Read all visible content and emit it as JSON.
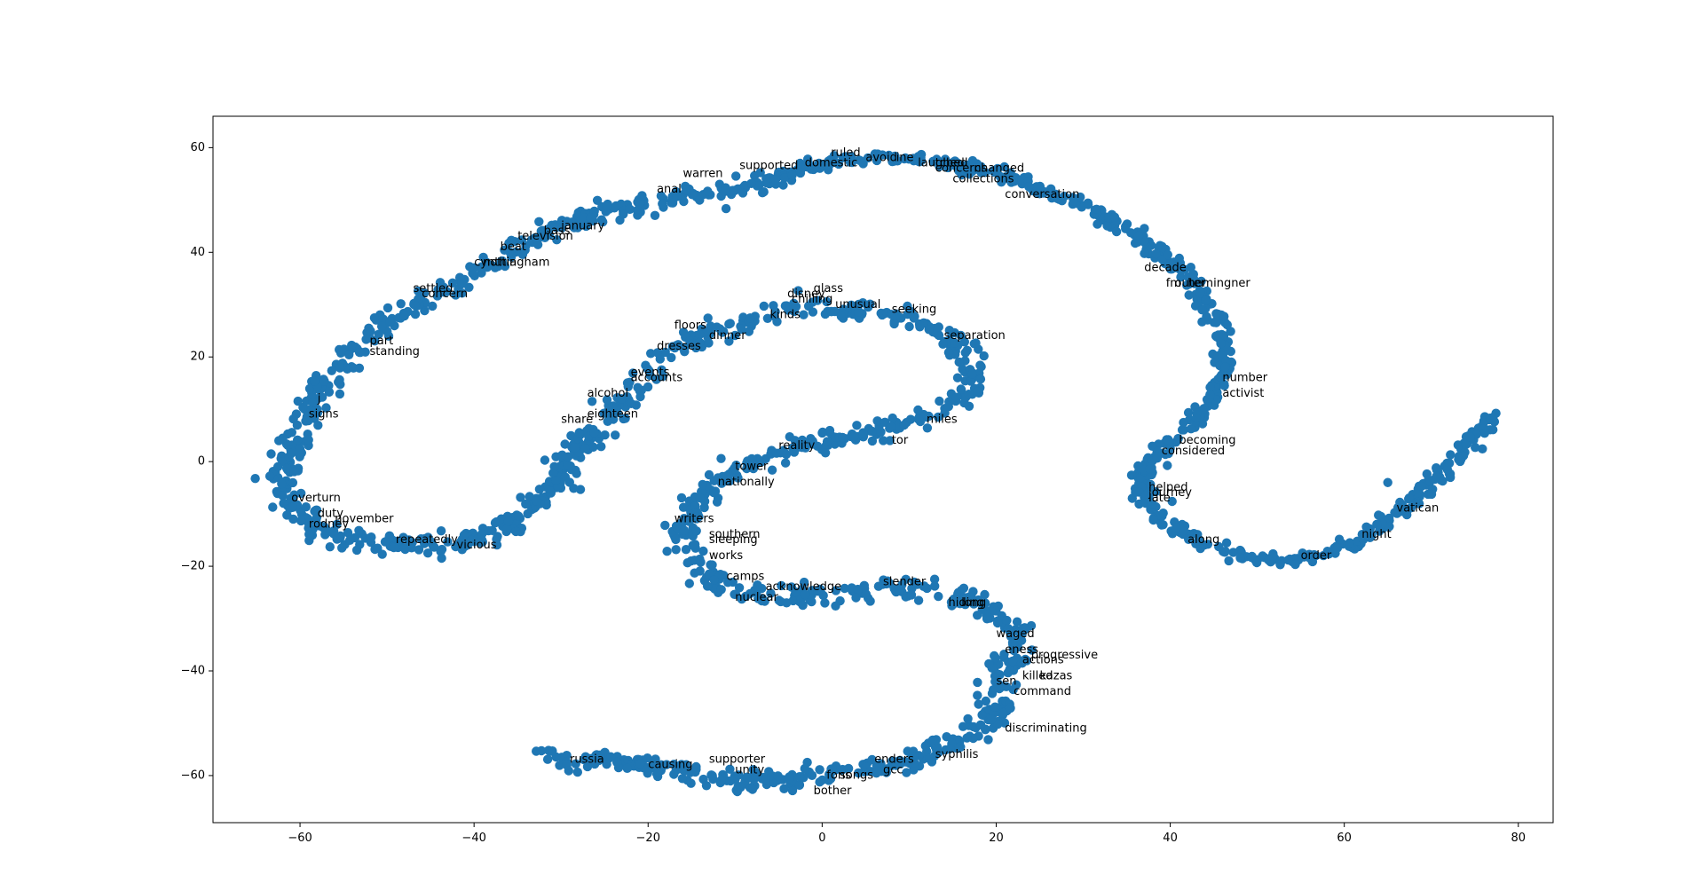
{
  "chart_data": {
    "type": "scatter",
    "title": "",
    "xlabel": "",
    "ylabel": "",
    "xlim": [
      -70,
      84
    ],
    "ylim": [
      -69,
      66
    ],
    "xticks": [
      -60,
      -40,
      -20,
      0,
      20,
      40,
      60,
      80
    ],
    "yticks": [
      -60,
      -40,
      -20,
      0,
      20,
      40,
      60
    ],
    "xtick_labels": [
      "−60",
      "−40",
      "−20",
      "0",
      "20",
      "40",
      "60",
      "80"
    ],
    "ytick_labels": [
      "−60",
      "−40",
      "−20",
      "0",
      "20",
      "40",
      "60"
    ],
    "grid": false,
    "legend": "none",
    "marker_color": "#1f77b4",
    "series_paths": [
      {
        "id": "outer",
        "points": [
          [
            -5,
            54
          ],
          [
            -10,
            52
          ],
          [
            -15,
            51
          ],
          [
            -20,
            49
          ],
          [
            -25,
            48
          ],
          [
            -30,
            45
          ],
          [
            -34,
            42
          ],
          [
            -38,
            38
          ],
          [
            -42,
            34
          ],
          [
            -46,
            31
          ],
          [
            -50,
            27
          ],
          [
            -53,
            23
          ],
          [
            -55,
            19
          ],
          [
            -57,
            15
          ],
          [
            -59,
            10
          ],
          [
            -60,
            6
          ],
          [
            -61,
            2
          ],
          [
            -62,
            -2
          ],
          [
            -62,
            -5
          ],
          [
            -60,
            -10
          ],
          [
            -58,
            -13
          ],
          [
            -56,
            -15
          ],
          [
            -52,
            -16
          ],
          [
            -48,
            -16
          ],
          [
            -44,
            -16
          ],
          [
            -40,
            -15
          ],
          [
            -37,
            -13
          ],
          [
            -35,
            -10
          ],
          [
            -33,
            -8
          ],
          [
            -31,
            -5
          ],
          [
            -29,
            -1
          ],
          [
            -28,
            2
          ],
          [
            -27,
            5
          ],
          [
            -25,
            8
          ],
          [
            -23,
            11
          ],
          [
            -21,
            14
          ],
          [
            -19,
            18
          ],
          [
            -17,
            21
          ],
          [
            -15,
            23
          ],
          [
            -12,
            25
          ],
          [
            -8,
            27
          ],
          [
            -4,
            29
          ],
          [
            0,
            29
          ],
          [
            4,
            29
          ],
          [
            8,
            28
          ],
          [
            12,
            26
          ],
          [
            15,
            24
          ],
          [
            16,
            21
          ],
          [
            17,
            18
          ],
          [
            17,
            15
          ],
          [
            16,
            12
          ],
          [
            14,
            10
          ],
          [
            11,
            8
          ],
          [
            8,
            6
          ],
          [
            5,
            5
          ],
          [
            1,
            4
          ],
          [
            -3,
            3
          ],
          [
            -6,
            1
          ],
          [
            -9,
            -1
          ],
          [
            -12,
            -4
          ],
          [
            -14,
            -7
          ],
          [
            -16,
            -11
          ],
          [
            -16,
            -15
          ],
          [
            -15,
            -19
          ],
          [
            -13,
            -22
          ],
          [
            -10,
            -24
          ],
          [
            -6,
            -26
          ],
          [
            -2,
            -26
          ],
          [
            2,
            -25
          ],
          [
            6,
            -24
          ],
          [
            10,
            -24
          ],
          [
            14,
            -25
          ],
          [
            18,
            -27
          ],
          [
            21,
            -30
          ],
          [
            23,
            -34
          ],
          [
            22,
            -37
          ],
          [
            20,
            -40
          ],
          [
            20,
            -44
          ],
          [
            20,
            -48
          ],
          [
            18,
            -51
          ],
          [
            15,
            -54
          ],
          [
            12,
            -56
          ],
          [
            8,
            -58
          ],
          [
            4,
            -59
          ],
          [
            0,
            -60
          ],
          [
            -4,
            -61
          ],
          [
            -8,
            -61
          ],
          [
            -12,
            -60
          ],
          [
            -16,
            -59
          ],
          [
            -20,
            -58
          ],
          [
            -24,
            -57
          ],
          [
            -28,
            -57
          ],
          [
            -32,
            -56
          ]
        ],
        "spread": 1.6,
        "count": 1500
      },
      {
        "id": "spiral",
        "points": [
          [
            -5,
            54
          ],
          [
            0,
            57
          ],
          [
            5,
            58
          ],
          [
            10,
            58
          ],
          [
            15,
            57
          ],
          [
            20,
            55
          ],
          [
            25,
            52
          ],
          [
            30,
            49
          ],
          [
            34,
            45
          ],
          [
            38,
            41
          ],
          [
            42,
            36
          ],
          [
            44,
            30
          ],
          [
            46,
            24
          ],
          [
            46,
            18
          ],
          [
            45,
            12
          ],
          [
            42,
            7
          ],
          [
            39,
            2
          ],
          [
            37,
            -2
          ],
          [
            37,
            -6
          ],
          [
            39,
            -11
          ],
          [
            43,
            -15
          ],
          [
            48,
            -18
          ],
          [
            53,
            -19
          ],
          [
            58,
            -18
          ],
          [
            62,
            -15
          ],
          [
            66,
            -10
          ],
          [
            70,
            -4
          ],
          [
            73,
            1
          ],
          [
            75,
            5
          ],
          [
            77,
            9
          ]
        ],
        "spread": 1.0,
        "count": 650
      }
    ],
    "outliers": [
      [
        65,
        -4
      ]
    ],
    "annotations": [
      {
        "text": "supported",
        "x": -9.5,
        "y": 56.5
      },
      {
        "text": "warren",
        "x": -16,
        "y": 55
      },
      {
        "text": "anal",
        "x": -19,
        "y": 52
      },
      {
        "text": "ruled",
        "x": 1,
        "y": 59
      },
      {
        "text": "domestic",
        "x": -2,
        "y": 57
      },
      {
        "text": "avoid",
        "x": 5,
        "y": 58
      },
      {
        "text": "ine",
        "x": 8.5,
        "y": 58
      },
      {
        "text": "laughed",
        "x": 11,
        "y": 57
      },
      {
        "text": "tched",
        "x": 13,
        "y": 57
      },
      {
        "text": "concerns",
        "x": 13,
        "y": 56
      },
      {
        "text": "changed",
        "x": 17.5,
        "y": 56
      },
      {
        "text": "collections",
        "x": 15,
        "y": 54
      },
      {
        "text": "conversation",
        "x": 21,
        "y": 51
      },
      {
        "text": "decade",
        "x": 37,
        "y": 37
      },
      {
        "text": "fm",
        "x": 39.5,
        "y": 34
      },
      {
        "text": "outer",
        "x": 40.5,
        "y": 34
      },
      {
        "text": "hemingner",
        "x": 42,
        "y": 34
      },
      {
        "text": "number",
        "x": 46,
        "y": 16
      },
      {
        "text": "activist",
        "x": 46,
        "y": 13
      },
      {
        "text": "becoming",
        "x": 41,
        "y": 4
      },
      {
        "text": "considered",
        "x": 39,
        "y": 2
      },
      {
        "text": "helped",
        "x": 37.5,
        "y": -5
      },
      {
        "text": "journey",
        "x": 37.5,
        "y": -6
      },
      {
        "text": "late",
        "x": 37.5,
        "y": -7
      },
      {
        "text": "vatican",
        "x": 66,
        "y": -9
      },
      {
        "text": "night",
        "x": 62,
        "y": -14
      },
      {
        "text": "order",
        "x": 55,
        "y": -18
      },
      {
        "text": "along",
        "x": 42,
        "y": -15
      },
      {
        "text": "glass",
        "x": -1,
        "y": 33
      },
      {
        "text": "disney",
        "x": -4,
        "y": 32
      },
      {
        "text": "chilling",
        "x": -3.5,
        "y": 31
      },
      {
        "text": "unusual",
        "x": 1.5,
        "y": 30
      },
      {
        "text": "seeking",
        "x": 8,
        "y": 29
      },
      {
        "text": "kinds",
        "x": -6,
        "y": 28
      },
      {
        "text": "floors",
        "x": -17,
        "y": 26
      },
      {
        "text": "dinner",
        "x": -13,
        "y": 24
      },
      {
        "text": "separation",
        "x": 14,
        "y": 24
      },
      {
        "text": "dresses",
        "x": -19,
        "y": 22
      },
      {
        "text": "events",
        "x": -22,
        "y": 17
      },
      {
        "text": "accounts",
        "x": -22,
        "y": 16
      },
      {
        "text": "alcohol",
        "x": -27,
        "y": 13
      },
      {
        "text": "eighteen",
        "x": -27,
        "y": 9
      },
      {
        "text": "share",
        "x": -30,
        "y": 8
      },
      {
        "text": "miles",
        "x": 12,
        "y": 8
      },
      {
        "text": "reality",
        "x": -5,
        "y": 3
      },
      {
        "text": "tor",
        "x": 8,
        "y": 4
      },
      {
        "text": "tower",
        "x": -10,
        "y": -1
      },
      {
        "text": "nationally",
        "x": -12,
        "y": -4
      },
      {
        "text": "writers",
        "x": -17,
        "y": -11
      },
      {
        "text": "southern",
        "x": -13,
        "y": -14
      },
      {
        "text": "sleeping",
        "x": -13,
        "y": -15
      },
      {
        "text": "works",
        "x": -13,
        "y": -18
      },
      {
        "text": "camps",
        "x": -11,
        "y": -22
      },
      {
        "text": "acknowledge",
        "x": -6.5,
        "y": -24
      },
      {
        "text": "nuclear",
        "x": -10,
        "y": -26
      },
      {
        "text": "slender",
        "x": 7,
        "y": -23
      },
      {
        "text": "hiding",
        "x": 14.5,
        "y": -27
      },
      {
        "text": "long",
        "x": 16,
        "y": -27
      },
      {
        "text": "waged",
        "x": 20,
        "y": -33
      },
      {
        "text": "eness",
        "x": 21,
        "y": -36
      },
      {
        "text": "progressive",
        "x": 24,
        "y": -37
      },
      {
        "text": "actions",
        "x": 23,
        "y": -38
      },
      {
        "text": "killed",
        "x": 23,
        "y": -41
      },
      {
        "text": "kazas",
        "x": 25,
        "y": -41
      },
      {
        "text": "sen",
        "x": 20,
        "y": -42
      },
      {
        "text": "command",
        "x": 22,
        "y": -44
      },
      {
        "text": "discriminating",
        "x": 21,
        "y": -51
      },
      {
        "text": "syphilis",
        "x": 13,
        "y": -56
      },
      {
        "text": "enders",
        "x": 6,
        "y": -57
      },
      {
        "text": "gcc",
        "x": 7,
        "y": -59
      },
      {
        "text": "songs",
        "x": 2,
        "y": -60
      },
      {
        "text": "fons",
        "x": 0.5,
        "y": -60
      },
      {
        "text": "bother",
        "x": -1,
        "y": -63
      },
      {
        "text": "supporter",
        "x": -13,
        "y": -57
      },
      {
        "text": "unity",
        "x": -10,
        "y": -59
      },
      {
        "text": "causing",
        "x": -20,
        "y": -58
      },
      {
        "text": "russia",
        "x": -29,
        "y": -57
      },
      {
        "text": "january",
        "x": -30,
        "y": 45
      },
      {
        "text": "bass",
        "x": -32,
        "y": 44
      },
      {
        "text": "television",
        "x": -35,
        "y": 43
      },
      {
        "text": "beat",
        "x": -37,
        "y": 41
      },
      {
        "text": "cynthia",
        "x": -40,
        "y": 38
      },
      {
        "text": "nottingham",
        "x": -39,
        "y": 38
      },
      {
        "text": "settled",
        "x": -47,
        "y": 33
      },
      {
        "text": "concern",
        "x": -46,
        "y": 32
      },
      {
        "text": "part",
        "x": -52,
        "y": 23
      },
      {
        "text": "standing",
        "x": -52,
        "y": 21
      },
      {
        "text": "j",
        "x": -58,
        "y": 12
      },
      {
        "text": "signs",
        "x": -59,
        "y": 9
      },
      {
        "text": "overturn",
        "x": -61,
        "y": -7
      },
      {
        "text": "duty",
        "x": -58,
        "y": -10
      },
      {
        "text": "november",
        "x": -56,
        "y": -11
      },
      {
        "text": "rodney",
        "x": -59,
        "y": -12
      },
      {
        "text": "repeatedly",
        "x": -49,
        "y": -15
      },
      {
        "text": "vicious",
        "x": -42,
        "y": -16
      }
    ]
  }
}
